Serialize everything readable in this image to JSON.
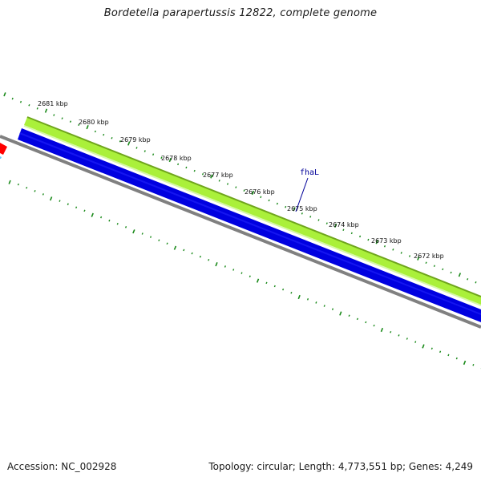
{
  "title": "Bordetella parapertussis 12822, complete genome",
  "footer": {
    "accession": "Accession: NC_002928",
    "summary": "Topology: circular; Length: 4,773,551 bp; Genes: 4,249"
  },
  "map": {
    "tick_labels": [
      "2681 kbp",
      "2680 kbp",
      "2679 kbp",
      "2678 kbp",
      "2677 kbp",
      "2676 kbp",
      "2675 kbp",
      "2674 kbp",
      "2673 kbp",
      "2672 kbp"
    ],
    "gene_label": "fhaL",
    "colors": {
      "forward_feature": "#aaf03a",
      "forward_feature_edge": "#6fa51c",
      "reverse_feature": "#0000e0",
      "backbone": "#808080",
      "ticks": "#1a8a1a",
      "gene_label": "#000099",
      "marker": "#ff0000"
    }
  }
}
